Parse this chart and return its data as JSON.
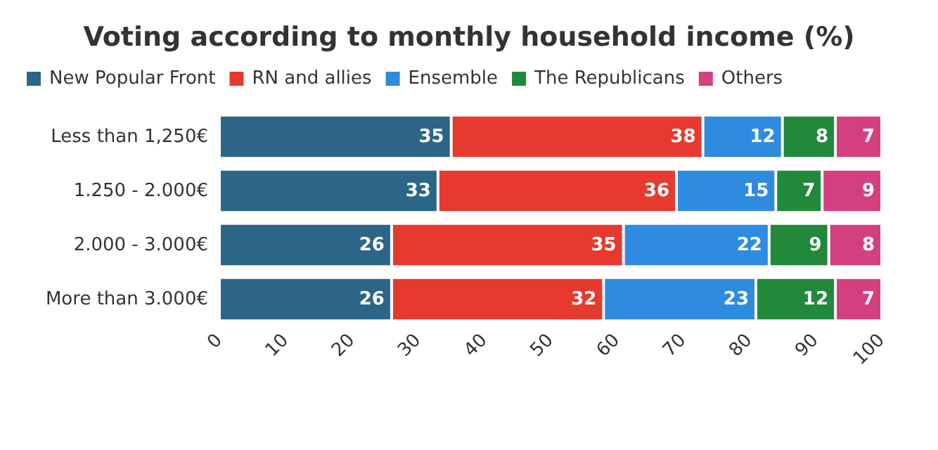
{
  "chart_data": {
    "type": "bar",
    "orientation": "horizontal",
    "stacked": true,
    "title": "Voting according to monthly household income (%)",
    "categories": [
      "Less than 1,250€",
      "1.250 - 2.000€",
      "2.000 - 3.000€",
      "More than 3.000€"
    ],
    "series": [
      {
        "name": "New Popular Front",
        "color": "#2b6688",
        "values": [
          35,
          33,
          26,
          26
        ]
      },
      {
        "name": "RN and allies",
        "color": "#e63a2e",
        "values": [
          38,
          36,
          35,
          32
        ]
      },
      {
        "name": "Ensemble",
        "color": "#2e8be0",
        "values": [
          12,
          15,
          22,
          23
        ]
      },
      {
        "name": "The Republicans",
        "color": "#23893a",
        "values": [
          8,
          7,
          9,
          12
        ]
      },
      {
        "name": "Others",
        "color": "#d4407f",
        "values": [
          7,
          9,
          8,
          7
        ]
      }
    ],
    "xlim": [
      0,
      100
    ],
    "xticks": [
      0,
      10,
      20,
      30,
      40,
      50,
      60,
      70,
      80,
      90,
      100
    ],
    "grid": false,
    "legend": "top left",
    "data_labels": true
  }
}
